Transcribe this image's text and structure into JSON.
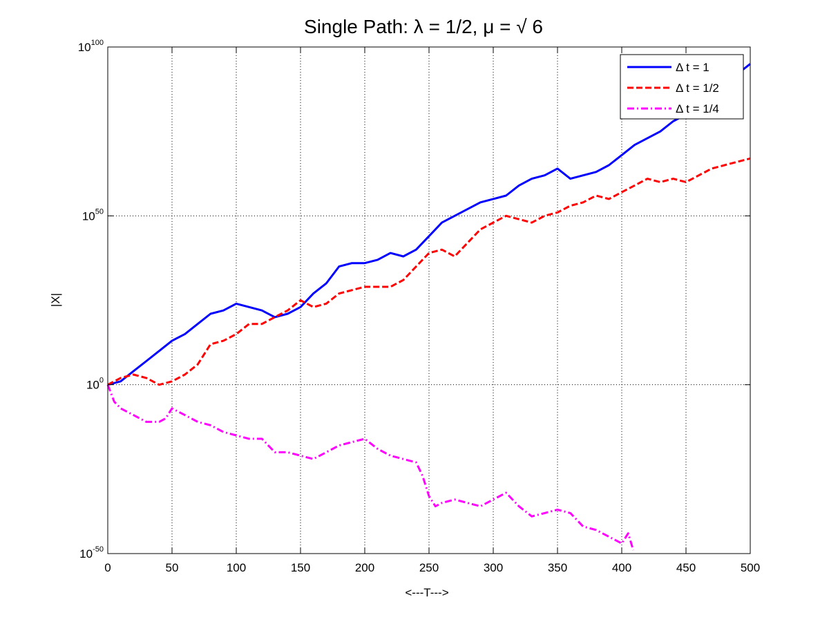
{
  "chart_data": {
    "type": "line",
    "title": "Single Path: λ = 1/2, μ  = √  6",
    "xlabel": "<---T--->",
    "ylabel": "|X|",
    "y_scale": "log",
    "xlim": [
      0,
      500
    ],
    "ylim": [
      1e-50,
      1e+100
    ],
    "x_ticks": [
      "0",
      "50",
      "100",
      "150",
      "200",
      "250",
      "300",
      "350",
      "400",
      "450",
      "500"
    ],
    "y_ticks": [
      {
        "base": "10",
        "exp": "-50"
      },
      {
        "base": "10",
        "exp": "0"
      },
      {
        "base": "10",
        "exp": "50"
      },
      {
        "base": "10",
        "exp": "100"
      }
    ],
    "grid": true,
    "legend_position": "top-right",
    "series": [
      {
        "name": "Δ t = 1",
        "color": "#0000ff",
        "style": "solid",
        "x": [
          0,
          10,
          20,
          30,
          40,
          50,
          60,
          70,
          80,
          90,
          100,
          110,
          120,
          130,
          140,
          150,
          160,
          170,
          180,
          190,
          200,
          210,
          220,
          230,
          240,
          250,
          260,
          270,
          280,
          290,
          300,
          310,
          320,
          330,
          340,
          350,
          360,
          370,
          380,
          390,
          400,
          410,
          420,
          430,
          440,
          450,
          460,
          470,
          480,
          490,
          500
        ],
        "y_log10": [
          0,
          1,
          4,
          7,
          10,
          13,
          15,
          18,
          21,
          22,
          24,
          23,
          22,
          20,
          21,
          23,
          27,
          30,
          35,
          36,
          36,
          37,
          39,
          38,
          40,
          44,
          48,
          50,
          52,
          54,
          55,
          56,
          59,
          61,
          62,
          64,
          61,
          62,
          63,
          65,
          68,
          71,
          73,
          75,
          78,
          80,
          83,
          85,
          89,
          92,
          95
        ]
      },
      {
        "name": "Δ t = 1/2",
        "color": "#ff0000",
        "style": "dashed",
        "x": [
          0,
          10,
          20,
          30,
          40,
          50,
          60,
          70,
          80,
          90,
          100,
          110,
          120,
          130,
          140,
          150,
          160,
          170,
          180,
          190,
          200,
          210,
          220,
          230,
          240,
          250,
          260,
          270,
          280,
          290,
          300,
          310,
          320,
          330,
          340,
          350,
          360,
          370,
          380,
          390,
          400,
          410,
          420,
          430,
          440,
          450,
          460,
          470,
          480,
          490,
          500
        ],
        "y_log10": [
          0,
          2,
          3,
          2,
          0,
          1,
          3,
          6,
          12,
          13,
          15,
          18,
          18,
          20,
          22,
          25,
          23,
          24,
          27,
          28,
          29,
          29,
          29,
          31,
          35,
          39,
          40,
          38,
          42,
          46,
          48,
          50,
          49,
          48,
          50,
          51,
          53,
          54,
          56,
          55,
          57,
          59,
          61,
          60,
          61,
          60,
          62,
          64,
          65,
          66,
          67
        ]
      },
      {
        "name": "Δ t = 1/4",
        "color": "#ff00ff",
        "style": "dashdot",
        "x": [
          0,
          5,
          10,
          20,
          30,
          40,
          45,
          50,
          55,
          60,
          70,
          80,
          90,
          100,
          110,
          120,
          130,
          140,
          150,
          160,
          170,
          180,
          190,
          200,
          210,
          220,
          230,
          240,
          245,
          250,
          255,
          260,
          270,
          280,
          290,
          300,
          310,
          320,
          330,
          340,
          350,
          360,
          370,
          380,
          390,
          400,
          405,
          409
        ],
        "y_log10": [
          0,
          -5,
          -7,
          -9,
          -11,
          -11,
          -10,
          -7,
          -8,
          -9,
          -11,
          -12,
          -14,
          -15,
          -16,
          -16,
          -20,
          -20,
          -21,
          -22,
          -20,
          -18,
          -17,
          -16,
          -19,
          -21,
          -22,
          -23,
          -27,
          -33,
          -36,
          -35,
          -34,
          -35,
          -36,
          -34,
          -32,
          -36,
          -39,
          -38,
          -37,
          -38,
          -42,
          -43,
          -45,
          -47,
          -44,
          -49
        ]
      }
    ]
  }
}
